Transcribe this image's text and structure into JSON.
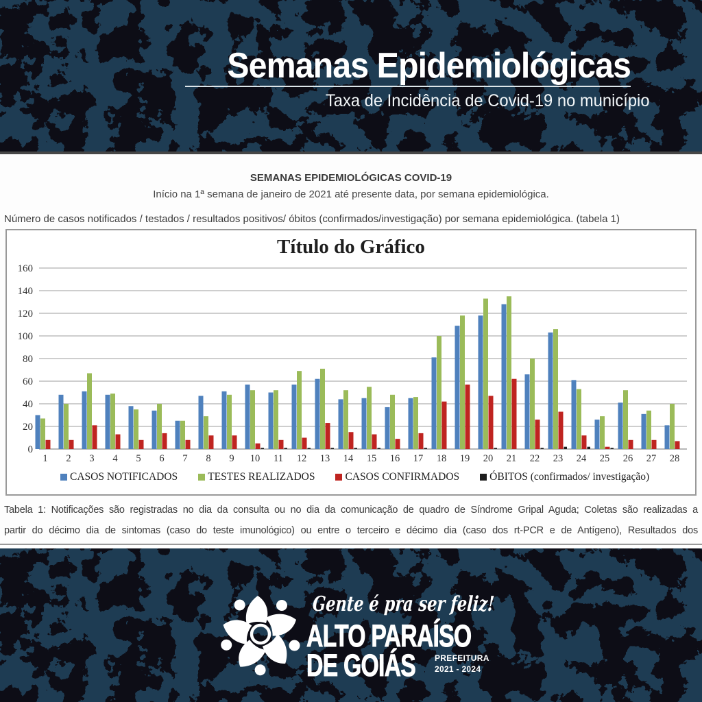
{
  "header": {
    "title": "Semanas Epidemiológicas",
    "subtitle": "Taxa de Incidência de Covid-19 no município"
  },
  "document": {
    "heading": "SEMANAS EPIDEMIOLÓGICAS COVID-19",
    "subheading": "Início na 1ª semana de janeiro de 2021 até presente data, por semana epidemiológica.",
    "intro": "Número de casos notificados / testados / resultados positivos/ óbitos (confirmados/investigação) por semana epidemiológica. (tabela 1)",
    "note_line1": "Tabela 1: Notificações são registradas no dia da consulta ou no dia da comunicação de quadro de Síndrome Gripal Aguda; Coletas são realizadas a",
    "note_line2": "partir do décimo dia de sintomas (caso do teste imunológico) ou entre o terceiro e décimo dia (caso dos rt-PCR e de Antígeno), Resultados dos"
  },
  "chart_data": {
    "type": "bar",
    "title": "Título do Gráfico",
    "categories": [
      1,
      2,
      3,
      4,
      5,
      6,
      7,
      8,
      9,
      10,
      11,
      12,
      13,
      14,
      15,
      16,
      17,
      18,
      19,
      20,
      21,
      22,
      23,
      24,
      25,
      26,
      27,
      28
    ],
    "series": [
      {
        "name": "CASOS NOTIFICADOS",
        "color": "#4f81bd",
        "values": [
          30,
          48,
          51,
          48,
          38,
          34,
          25,
          47,
          51,
          57,
          50,
          57,
          62,
          44,
          45,
          37,
          45,
          81,
          109,
          118,
          128,
          66,
          103,
          61,
          26,
          41,
          31,
          21
        ]
      },
      {
        "name": "TESTES REALIZADOS",
        "color": "#9bbb59",
        "values": [
          27,
          40,
          67,
          49,
          35,
          40,
          25,
          29,
          48,
          52,
          52,
          69,
          71,
          52,
          55,
          48,
          46,
          100,
          118,
          133,
          135,
          80,
          106,
          53,
          29,
          52,
          34,
          40
        ]
      },
      {
        "name": "CASOS CONFIRMADOS",
        "color": "#bf2420",
        "values": [
          8,
          8,
          21,
          13,
          8,
          14,
          8,
          12,
          12,
          5,
          8,
          10,
          23,
          15,
          13,
          9,
          14,
          42,
          57,
          47,
          62,
          26,
          33,
          12,
          2,
          8,
          8,
          7
        ]
      },
      {
        "name": "ÓBITOS (confirmados/ investigação)",
        "color": "#1d1d1d",
        "values": [
          0,
          0,
          0,
          0,
          0,
          0,
          0,
          0,
          0,
          1,
          1,
          1,
          1,
          1,
          1,
          0,
          1,
          0,
          0,
          1,
          0,
          1,
          2,
          2,
          1,
          0,
          0,
          0
        ]
      }
    ],
    "ylim": [
      0,
      160
    ],
    "ytick_step": 20,
    "grid": true,
    "legend_position": "bottom"
  },
  "footer": {
    "tagline": "Gente é pra ser feliz!",
    "city_line1": "ALTO PARAÍSO",
    "city_line2": "DE GOIÁS",
    "org": "PREFEITURA",
    "term": "2021 - 2024"
  },
  "colors": {
    "band_navy": "#1e3c53",
    "band_blotch": "#0a0f15",
    "divider_dark": "#474747",
    "grid_gray": "#b0b0b0"
  }
}
